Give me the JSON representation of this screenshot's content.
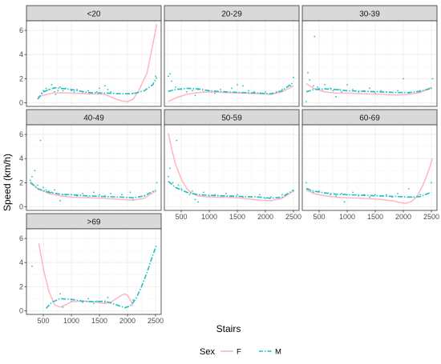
{
  "colors": {
    "F": "#ffb6c1",
    "M": "#20c0c0"
  },
  "chart_data": {
    "type": "scatter",
    "xlabel": "Stairs",
    "ylabel": "Speed (km/h)",
    "xlim": [
      200,
      2600
    ],
    "ylim": [
      -0.3,
      6.8
    ],
    "x_ticks": [
      500,
      1000,
      1500,
      2000,
      2500
    ],
    "y_ticks": [
      0,
      2,
      4,
      6
    ],
    "grid": true,
    "legend": {
      "title": "Sex",
      "position": "bottom",
      "entries": [
        {
          "key": "F",
          "label": "F",
          "line": "solid"
        },
        {
          "key": "M",
          "label": "M",
          "line": "dashdot"
        }
      ]
    },
    "panels": [
      {
        "label": "<20",
        "smooth_F": {
          "x": [
            400,
            700,
            1000,
            1300,
            1600,
            1800,
            1900,
            2000,
            2100,
            2200,
            2350,
            2450,
            2520
          ],
          "y": [
            0.5,
            0.85,
            0.8,
            0.75,
            0.7,
            0.3,
            0.15,
            0.1,
            0.3,
            1.0,
            2.5,
            4.8,
            6.5
          ]
        },
        "smooth_M": {
          "x": [
            400,
            500,
            700,
            1000,
            1300,
            1600,
            1900,
            2100,
            2300,
            2450,
            2520
          ],
          "y": [
            0.3,
            0.9,
            1.25,
            1.1,
            0.85,
            0.8,
            0.75,
            0.75,
            1.0,
            1.5,
            2.1
          ]
        },
        "points": [
          {
            "x": 420,
            "y": 0.5
          },
          {
            "x": 470,
            "y": 0.8
          },
          {
            "x": 500,
            "y": 1.0
          },
          {
            "x": 550,
            "y": 1.2
          },
          {
            "x": 600,
            "y": 1.1
          },
          {
            "x": 650,
            "y": 1.5
          },
          {
            "x": 700,
            "y": 0.9
          },
          {
            "x": 720,
            "y": 0.7
          },
          {
            "x": 760,
            "y": 1.0
          },
          {
            "x": 800,
            "y": 1.3
          },
          {
            "x": 850,
            "y": 1.0
          },
          {
            "x": 900,
            "y": 1.2
          },
          {
            "x": 1000,
            "y": 1.0
          },
          {
            "x": 1050,
            "y": 0.9
          },
          {
            "x": 1100,
            "y": 1.1
          },
          {
            "x": 1200,
            "y": 0.8
          },
          {
            "x": 1300,
            "y": 1.0
          },
          {
            "x": 1450,
            "y": 0.9
          },
          {
            "x": 1500,
            "y": 1.2
          },
          {
            "x": 1600,
            "y": 1.4
          },
          {
            "x": 1650,
            "y": 1.1
          },
          {
            "x": 1700,
            "y": 0.9
          },
          {
            "x": 2100,
            "y": 0.8
          },
          {
            "x": 2500,
            "y": 2.2
          }
        ]
      },
      {
        "label": "20-29",
        "smooth_F": {
          "x": [
            270,
            400,
            600,
            800,
            1000,
            1300,
            1600,
            1900,
            2100,
            2300,
            2500
          ],
          "y": [
            0.1,
            0.4,
            0.7,
            0.85,
            0.9,
            0.85,
            0.8,
            0.75,
            0.7,
            0.9,
            1.4
          ]
        },
        "smooth_M": {
          "x": [
            270,
            400,
            600,
            800,
            1000,
            1300,
            1600,
            1900,
            2100,
            2300,
            2500
          ],
          "y": [
            0.95,
            1.1,
            1.2,
            1.15,
            1.0,
            0.9,
            0.85,
            0.8,
            0.75,
            1.0,
            1.7
          ]
        },
        "points": [
          {
            "x": 270,
            "y": 2.2
          },
          {
            "x": 300,
            "y": 2.4
          },
          {
            "x": 330,
            "y": 1.8
          },
          {
            "x": 400,
            "y": 1.3
          },
          {
            "x": 500,
            "y": 1.1
          },
          {
            "x": 600,
            "y": 0.9
          },
          {
            "x": 700,
            "y": 1.0
          },
          {
            "x": 750,
            "y": 0.6
          },
          {
            "x": 800,
            "y": 1.1
          },
          {
            "x": 900,
            "y": 0.9
          },
          {
            "x": 1000,
            "y": 1.0
          },
          {
            "x": 1100,
            "y": 0.8
          },
          {
            "x": 1200,
            "y": 1.1
          },
          {
            "x": 1300,
            "y": 0.9
          },
          {
            "x": 1400,
            "y": 1.2
          },
          {
            "x": 1500,
            "y": 1.5
          },
          {
            "x": 1600,
            "y": 1.4
          },
          {
            "x": 1700,
            "y": 1.0
          },
          {
            "x": 1800,
            "y": 0.9
          },
          {
            "x": 1900,
            "y": 0.8
          },
          {
            "x": 2000,
            "y": 0.9
          },
          {
            "x": 2100,
            "y": 0.7
          },
          {
            "x": 2200,
            "y": 0.9
          },
          {
            "x": 2300,
            "y": 1.1
          },
          {
            "x": 2450,
            "y": 1.4
          },
          {
            "x": 2500,
            "y": 2.1
          }
        ]
      },
      {
        "label": "30-39",
        "smooth_F": {
          "x": [
            270,
            400,
            600,
            800,
            1000,
            1300,
            1600,
            1900,
            2100,
            2300,
            2500
          ],
          "y": [
            1.6,
            1.2,
            0.9,
            0.8,
            0.8,
            0.75,
            0.7,
            0.65,
            0.7,
            0.85,
            1.3
          ]
        },
        "smooth_M": {
          "x": [
            270,
            400,
            600,
            800,
            1000,
            1300,
            1600,
            1900,
            2100,
            2300,
            2500
          ],
          "y": [
            0.9,
            1.1,
            1.15,
            1.1,
            1.0,
            0.95,
            0.9,
            0.85,
            0.85,
            0.95,
            1.2
          ]
        },
        "points": [
          {
            "x": 270,
            "y": 0.1
          },
          {
            "x": 300,
            "y": 2.5
          },
          {
            "x": 330,
            "y": 1.9
          },
          {
            "x": 400,
            "y": 1.4
          },
          {
            "x": 420,
            "y": 5.5
          },
          {
            "x": 470,
            "y": 1.3
          },
          {
            "x": 500,
            "y": 1.2
          },
          {
            "x": 560,
            "y": 1.0
          },
          {
            "x": 600,
            "y": 1.5
          },
          {
            "x": 700,
            "y": 1.2
          },
          {
            "x": 750,
            "y": 1.0
          },
          {
            "x": 800,
            "y": 0.5
          },
          {
            "x": 850,
            "y": 1.1
          },
          {
            "x": 900,
            "y": 0.9
          },
          {
            "x": 1000,
            "y": 1.5
          },
          {
            "x": 1100,
            "y": 1.1
          },
          {
            "x": 1200,
            "y": 0.9
          },
          {
            "x": 1300,
            "y": 1.0
          },
          {
            "x": 1400,
            "y": 1.2
          },
          {
            "x": 1500,
            "y": 0.8
          },
          {
            "x": 1600,
            "y": 1.0
          },
          {
            "x": 1700,
            "y": 0.9
          },
          {
            "x": 1900,
            "y": 1.0
          },
          {
            "x": 2000,
            "y": 2.0
          },
          {
            "x": 2100,
            "y": 0.8
          },
          {
            "x": 2300,
            "y": 1.0
          },
          {
            "x": 2500,
            "y": 1.2
          },
          {
            "x": 2520,
            "y": 2.0
          }
        ]
      },
      {
        "label": "40-49",
        "smooth_F": {
          "x": [
            270,
            400,
            600,
            800,
            1000,
            1300,
            1600,
            1900,
            2100,
            2300,
            2500
          ],
          "y": [
            2.1,
            1.5,
            1.1,
            0.9,
            0.8,
            0.75,
            0.7,
            0.6,
            0.55,
            0.7,
            1.3
          ]
        },
        "smooth_M": {
          "x": [
            270,
            400,
            600,
            800,
            1000,
            1300,
            1600,
            1900,
            2100,
            2300,
            2500
          ],
          "y": [
            2.0,
            1.5,
            1.2,
            1.05,
            1.0,
            0.9,
            0.85,
            0.8,
            0.75,
            0.9,
            1.4
          ]
        },
        "points": [
          {
            "x": 270,
            "y": 2.2
          },
          {
            "x": 300,
            "y": 2.5
          },
          {
            "x": 350,
            "y": 3.0
          },
          {
            "x": 400,
            "y": 1.8
          },
          {
            "x": 450,
            "y": 5.5
          },
          {
            "x": 500,
            "y": 1.6
          },
          {
            "x": 550,
            "y": 1.4
          },
          {
            "x": 600,
            "y": 1.3
          },
          {
            "x": 650,
            "y": 1.2
          },
          {
            "x": 700,
            "y": 1.4
          },
          {
            "x": 800,
            "y": 0.5
          },
          {
            "x": 850,
            "y": 1.0
          },
          {
            "x": 900,
            "y": 0.9
          },
          {
            "x": 1000,
            "y": 1.0
          },
          {
            "x": 1100,
            "y": 0.9
          },
          {
            "x": 1200,
            "y": 1.1
          },
          {
            "x": 1300,
            "y": 0.8
          },
          {
            "x": 1400,
            "y": 1.2
          },
          {
            "x": 1500,
            "y": 1.0
          },
          {
            "x": 1600,
            "y": 0.9
          },
          {
            "x": 1700,
            "y": 1.1
          },
          {
            "x": 1900,
            "y": 1.0
          },
          {
            "x": 2050,
            "y": 1.2
          },
          {
            "x": 2100,
            "y": 0.6
          },
          {
            "x": 2300,
            "y": 0.9
          },
          {
            "x": 2500,
            "y": 1.3
          },
          {
            "x": 2520,
            "y": 2.0
          }
        ]
      },
      {
        "label": "50-59",
        "smooth_F": {
          "x": [
            270,
            330,
            400,
            500,
            600,
            700,
            800,
            1000,
            1300,
            1600,
            1900,
            2100,
            2300,
            2500
          ],
          "y": [
            6.1,
            4.8,
            3.5,
            2.3,
            1.5,
            1.1,
            0.9,
            0.8,
            0.8,
            0.7,
            0.55,
            0.5,
            0.7,
            1.3
          ]
        },
        "smooth_M": {
          "x": [
            270,
            400,
            600,
            800,
            1000,
            1300,
            1600,
            1900,
            2100,
            2300,
            2500
          ],
          "y": [
            2.1,
            1.6,
            1.2,
            1.0,
            0.95,
            0.9,
            0.85,
            0.8,
            0.7,
            0.8,
            1.4
          ]
        },
        "points": [
          {
            "x": 270,
            "y": 2.5
          },
          {
            "x": 300,
            "y": 3.2
          },
          {
            "x": 350,
            "y": 2.0
          },
          {
            "x": 420,
            "y": 5.5
          },
          {
            "x": 450,
            "y": 1.8
          },
          {
            "x": 500,
            "y": 1.5
          },
          {
            "x": 600,
            "y": 1.2
          },
          {
            "x": 650,
            "y": 1.0
          },
          {
            "x": 700,
            "y": 1.3
          },
          {
            "x": 750,
            "y": 0.6
          },
          {
            "x": 800,
            "y": 0.4
          },
          {
            "x": 900,
            "y": 1.2
          },
          {
            "x": 1000,
            "y": 0.9
          },
          {
            "x": 1100,
            "y": 1.0
          },
          {
            "x": 1200,
            "y": 0.8
          },
          {
            "x": 1300,
            "y": 1.1
          },
          {
            "x": 1400,
            "y": 0.9
          },
          {
            "x": 1500,
            "y": 1.0
          },
          {
            "x": 1600,
            "y": 0.8
          },
          {
            "x": 1800,
            "y": 0.6
          },
          {
            "x": 1900,
            "y": 1.0
          },
          {
            "x": 2000,
            "y": 0.7
          },
          {
            "x": 2100,
            "y": 0.8
          },
          {
            "x": 2300,
            "y": 1.0
          },
          {
            "x": 2500,
            "y": 1.3
          }
        ]
      },
      {
        "label": "60-69",
        "smooth_F": {
          "x": [
            270,
            400,
            600,
            800,
            1000,
            1300,
            1600,
            1800,
            1950,
            2050,
            2150,
            2250,
            2350,
            2450,
            2520
          ],
          "y": [
            1.4,
            1.1,
            0.9,
            0.8,
            0.75,
            0.7,
            0.6,
            0.5,
            0.35,
            0.3,
            0.45,
            0.9,
            1.8,
            3.0,
            4.0
          ]
        },
        "smooth_M": {
          "x": [
            270,
            400,
            600,
            800,
            1000,
            1300,
            1600,
            1900,
            2100,
            2300,
            2500
          ],
          "y": [
            1.5,
            1.3,
            1.15,
            1.05,
            1.0,
            0.95,
            0.9,
            0.85,
            0.8,
            0.85,
            1.2
          ]
        },
        "points": [
          {
            "x": 270,
            "y": 2.0
          },
          {
            "x": 300,
            "y": 1.5
          },
          {
            "x": 350,
            "y": 1.3
          },
          {
            "x": 400,
            "y": 1.2
          },
          {
            "x": 500,
            "y": 1.3
          },
          {
            "x": 600,
            "y": 1.1
          },
          {
            "x": 700,
            "y": 1.0
          },
          {
            "x": 800,
            "y": 0.9
          },
          {
            "x": 900,
            "y": 1.1
          },
          {
            "x": 950,
            "y": 0.4
          },
          {
            "x": 1000,
            "y": 1.0
          },
          {
            "x": 1100,
            "y": 1.2
          },
          {
            "x": 1200,
            "y": 0.9
          },
          {
            "x": 1300,
            "y": 1.0
          },
          {
            "x": 1400,
            "y": 0.8
          },
          {
            "x": 1500,
            "y": 1.0
          },
          {
            "x": 1600,
            "y": 0.9
          },
          {
            "x": 1700,
            "y": 1.0
          },
          {
            "x": 1800,
            "y": 0.8
          },
          {
            "x": 1900,
            "y": 1.1
          },
          {
            "x": 2100,
            "y": 1.5
          },
          {
            "x": 2150,
            "y": 0.8
          },
          {
            "x": 2300,
            "y": 1.0
          },
          {
            "x": 2500,
            "y": 2.0
          }
        ]
      },
      {
        "label": ">69",
        "smooth_F": {
          "x": [
            420,
            500,
            600,
            700,
            800,
            900,
            1000,
            1200,
            1400,
            1600,
            1700,
            1800,
            1900,
            1950,
            2000,
            2050,
            2100
          ],
          "y": [
            5.6,
            3.5,
            1.6,
            0.5,
            0.3,
            0.5,
            0.75,
            0.8,
            0.75,
            0.6,
            0.7,
            1.0,
            1.3,
            1.4,
            1.3,
            0.9,
            0.4
          ]
        },
        "smooth_M": {
          "x": [
            550,
            650,
            800,
            1000,
            1200,
            1400,
            1600,
            1800,
            1950,
            2050,
            2150,
            2250,
            2350,
            2450,
            2520
          ],
          "y": [
            0.2,
            0.7,
            1.0,
            0.95,
            0.8,
            0.75,
            0.8,
            0.5,
            0.25,
            0.4,
            1.0,
            2.0,
            3.2,
            4.6,
            5.5
          ]
        },
        "points": [
          {
            "x": 300,
            "y": 3.7
          },
          {
            "x": 800,
            "y": 1.4
          },
          {
            "x": 850,
            "y": 0.3
          },
          {
            "x": 900,
            "y": 0.5
          },
          {
            "x": 1000,
            "y": 0.8
          },
          {
            "x": 1200,
            "y": 0.7
          },
          {
            "x": 1300,
            "y": 1.0
          },
          {
            "x": 1400,
            "y": 0.6
          },
          {
            "x": 1450,
            "y": 0.8
          },
          {
            "x": 1600,
            "y": 0.7
          },
          {
            "x": 1650,
            "y": 1.1
          },
          {
            "x": 2100,
            "y": 0.9
          }
        ]
      }
    ]
  }
}
